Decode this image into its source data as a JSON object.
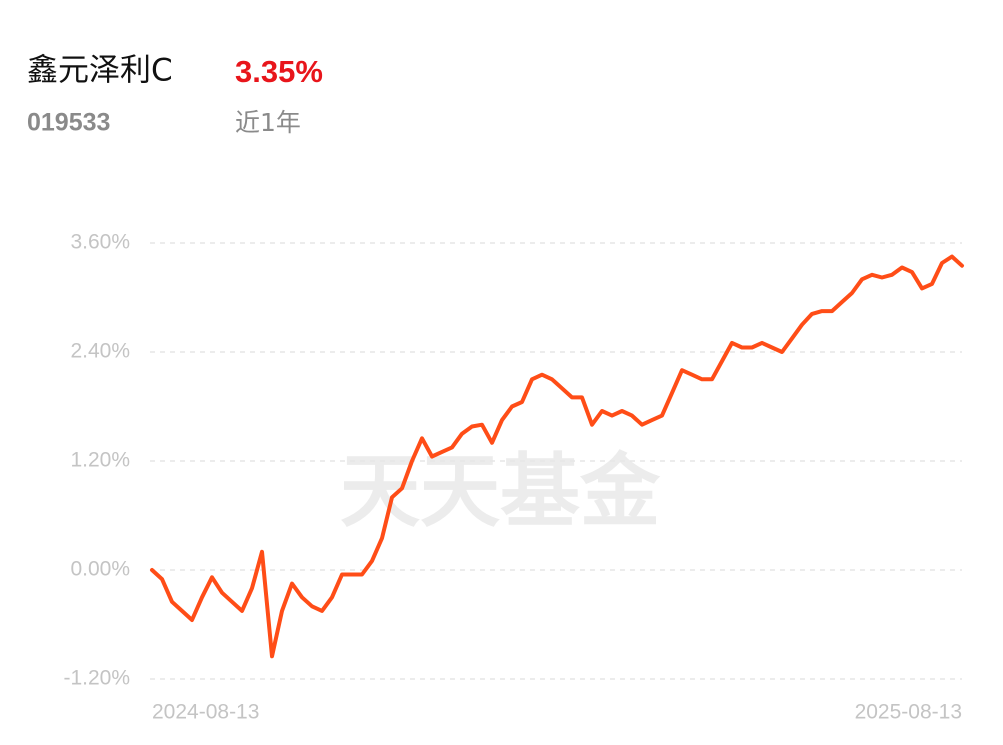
{
  "header": {
    "name": "鑫元泽利C",
    "return": "3.35%",
    "code": "019533",
    "period": "近1年"
  },
  "watermark": "天天基金",
  "chart_data": {
    "type": "line",
    "color": "#ff4d17",
    "grid": true,
    "ylim": [
      -1.2,
      3.6
    ],
    "yticks": [
      {
        "value": 3.6,
        "label": "3.60%"
      },
      {
        "value": 2.4,
        "label": "2.40%"
      },
      {
        "value": 1.2,
        "label": "1.20%"
      },
      {
        "value": 0,
        "label": "0.00%"
      },
      {
        "value": -1.2,
        "label": "-1.20%"
      }
    ],
    "categories": [
      "2024-08-13",
      null,
      null,
      null,
      null,
      null,
      null,
      null,
      null,
      null,
      null,
      null,
      null,
      null,
      null,
      null,
      null,
      null,
      null,
      null,
      null,
      null,
      null,
      null,
      null,
      null,
      null,
      null,
      null,
      null,
      null,
      null,
      null,
      null,
      null,
      null,
      null,
      null,
      null,
      null,
      null,
      null,
      null,
      null,
      null,
      null,
      null,
      null,
      null,
      null,
      null,
      null,
      null,
      null,
      null,
      null,
      null,
      null,
      null,
      null,
      null,
      null,
      null,
      null,
      null,
      null,
      null,
      null,
      null,
      null,
      null,
      null,
      null,
      null,
      null,
      null,
      null,
      null,
      null,
      null,
      null,
      "2025-08-13"
    ],
    "values": [
      0.0,
      -0.1,
      -0.35,
      -0.45,
      -0.55,
      -0.3,
      -0.08,
      -0.25,
      -0.35,
      -0.45,
      -0.2,
      0.2,
      -0.95,
      -0.45,
      -0.15,
      -0.3,
      -0.4,
      -0.45,
      -0.3,
      -0.05,
      -0.05,
      -0.05,
      0.1,
      0.35,
      0.8,
      0.9,
      1.2,
      1.45,
      1.25,
      1.3,
      1.35,
      1.5,
      1.58,
      1.6,
      1.4,
      1.65,
      1.8,
      1.85,
      2.1,
      2.15,
      2.1,
      2.0,
      1.9,
      1.9,
      1.6,
      1.75,
      1.7,
      1.75,
      1.7,
      1.6,
      1.65,
      1.7,
      1.95,
      2.2,
      2.15,
      2.1,
      2.1,
      2.3,
      2.5,
      2.45,
      2.45,
      2.5,
      2.45,
      2.4,
      2.55,
      2.7,
      2.82,
      2.85,
      2.85,
      2.95,
      3.05,
      3.2,
      3.25,
      3.22,
      3.25,
      3.33,
      3.28,
      3.1,
      3.15,
      3.38,
      3.45,
      3.35
    ]
  }
}
